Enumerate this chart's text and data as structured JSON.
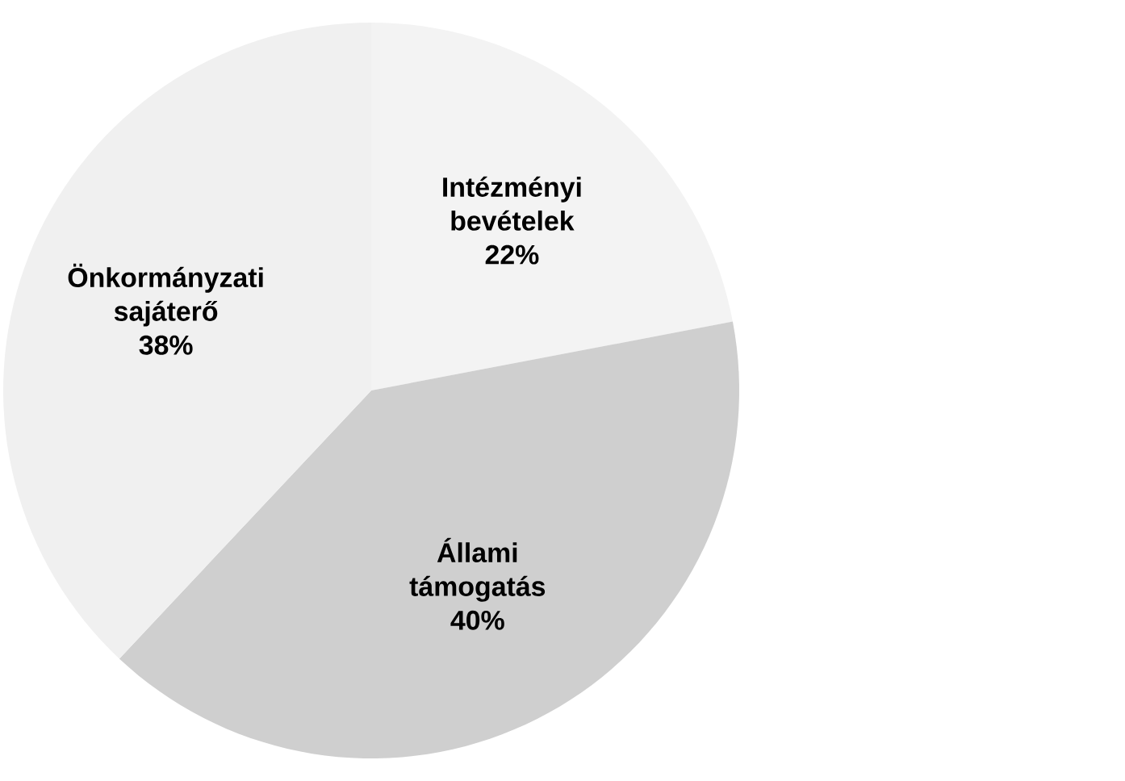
{
  "chart_data": {
    "type": "pie",
    "categories": [
      "Intézményi bevételek",
      "Állami támogatás",
      "Önkormányzati sajáterő"
    ],
    "values": [
      22,
      40,
      38
    ],
    "colors": [
      "#f3f3f3",
      "#cfcfcf",
      "#f0f0f0"
    ],
    "value_labels": [
      "22%",
      "40%",
      "38%"
    ]
  }
}
